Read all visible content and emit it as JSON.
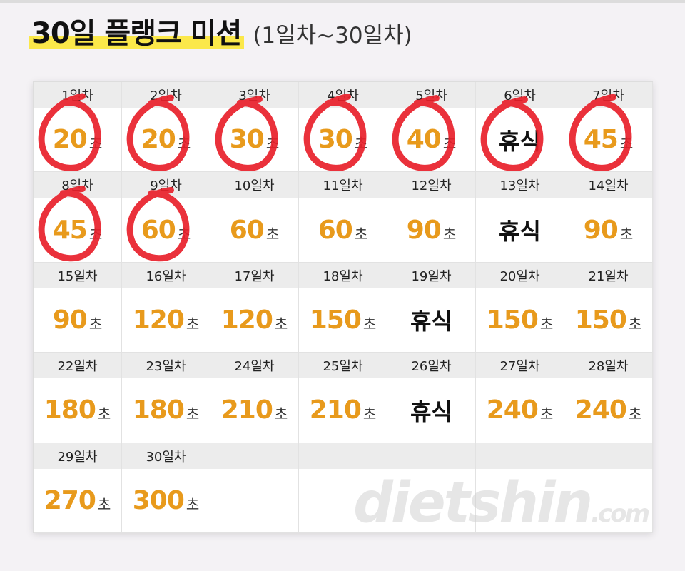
{
  "header": {
    "title": "30일 플랭크 미션",
    "subtitle": "(1일차~30일차)"
  },
  "unit": "초",
  "days": [
    {
      "label": "1일차",
      "value": "20",
      "rest": false,
      "circled": true
    },
    {
      "label": "2일차",
      "value": "20",
      "rest": false,
      "circled": true
    },
    {
      "label": "3일차",
      "value": "30",
      "rest": false,
      "circled": true
    },
    {
      "label": "4일차",
      "value": "30",
      "rest": false,
      "circled": true
    },
    {
      "label": "5일차",
      "value": "40",
      "rest": false,
      "circled": true
    },
    {
      "label": "6일차",
      "value": "휴식",
      "rest": true,
      "circled": true
    },
    {
      "label": "7일차",
      "value": "45",
      "rest": false,
      "circled": true
    },
    {
      "label": "8일차",
      "value": "45",
      "rest": false,
      "circled": true
    },
    {
      "label": "9일차",
      "value": "60",
      "rest": false,
      "circled": true
    },
    {
      "label": "10일차",
      "value": "60",
      "rest": false,
      "circled": false
    },
    {
      "label": "11일차",
      "value": "60",
      "rest": false,
      "circled": false
    },
    {
      "label": "12일차",
      "value": "90",
      "rest": false,
      "circled": false
    },
    {
      "label": "13일차",
      "value": "휴식",
      "rest": true,
      "circled": false
    },
    {
      "label": "14일차",
      "value": "90",
      "rest": false,
      "circled": false
    },
    {
      "label": "15일차",
      "value": "90",
      "rest": false,
      "circled": false
    },
    {
      "label": "16일차",
      "value": "120",
      "rest": false,
      "circled": false
    },
    {
      "label": "17일차",
      "value": "120",
      "rest": false,
      "circled": false
    },
    {
      "label": "18일차",
      "value": "150",
      "rest": false,
      "circled": false
    },
    {
      "label": "19일차",
      "value": "휴식",
      "rest": true,
      "circled": false
    },
    {
      "label": "20일차",
      "value": "150",
      "rest": false,
      "circled": false
    },
    {
      "label": "21일차",
      "value": "150",
      "rest": false,
      "circled": false
    },
    {
      "label": "22일차",
      "value": "180",
      "rest": false,
      "circled": false
    },
    {
      "label": "23일차",
      "value": "180",
      "rest": false,
      "circled": false
    },
    {
      "label": "24일차",
      "value": "210",
      "rest": false,
      "circled": false
    },
    {
      "label": "25일차",
      "value": "210",
      "rest": false,
      "circled": false
    },
    {
      "label": "26일차",
      "value": "휴식",
      "rest": true,
      "circled": false
    },
    {
      "label": "27일차",
      "value": "240",
      "rest": false,
      "circled": false
    },
    {
      "label": "28일차",
      "value": "240",
      "rest": false,
      "circled": false
    },
    {
      "label": "29일차",
      "value": "270",
      "rest": false,
      "circled": false
    },
    {
      "label": "30일차",
      "value": "300",
      "rest": false,
      "circled": false
    }
  ],
  "watermark": {
    "brand": "dietshin",
    "suffix": ".com"
  },
  "colors": {
    "accent": "#e89a1c",
    "highlight": "#fbe84a",
    "marker": "#e8202a"
  }
}
